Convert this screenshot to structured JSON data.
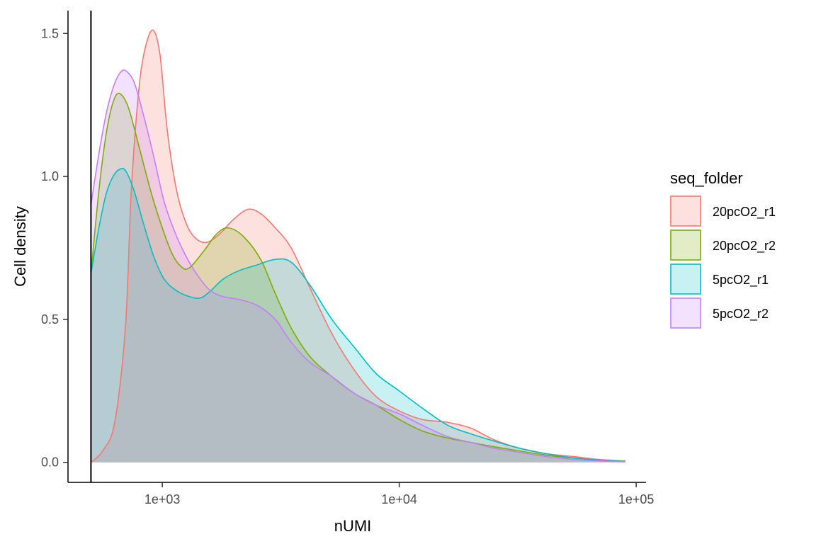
{
  "chart_data": {
    "type": "area",
    "subtype": "density",
    "xlabel": "nUMI",
    "ylabel": "Cell density",
    "x_scale": "log10",
    "xlim": [
      400,
      110000
    ],
    "ylim": [
      -0.07,
      1.58
    ],
    "x_ticks": [
      {
        "value": 1000,
        "label": "1e+03"
      },
      {
        "value": 10000,
        "label": "1e+04"
      },
      {
        "value": 100000,
        "label": "1e+05"
      }
    ],
    "y_ticks": [
      {
        "value": 0.0,
        "label": "0.0"
      },
      {
        "value": 0.5,
        "label": "0.5"
      },
      {
        "value": 1.0,
        "label": "1.0"
      },
      {
        "value": 1.5,
        "label": "1.5"
      }
    ],
    "vline": 500,
    "grid": false,
    "fill_opacity": 0.22,
    "legend": {
      "title": "seq_folder",
      "position": "right"
    },
    "series": [
      {
        "name": "20pcO2_r1",
        "color": "#F8766D",
        "x": [
          500,
          560,
          630,
          700,
          740,
          800,
          860,
          920,
          980,
          1050,
          1150,
          1270,
          1400,
          1550,
          1750,
          2000,
          2300,
          2600,
          3000,
          3500,
          4200,
          5200,
          6500,
          8000,
          10000,
          12500,
          16000,
          20000,
          25000,
          32000,
          42000,
          55000,
          70000,
          90000
        ],
        "y": [
          0.0,
          0.04,
          0.14,
          0.48,
          0.95,
          1.32,
          1.47,
          1.51,
          1.42,
          1.16,
          0.95,
          0.83,
          0.78,
          0.77,
          0.8,
          0.85,
          0.885,
          0.87,
          0.82,
          0.75,
          0.61,
          0.45,
          0.32,
          0.23,
          0.18,
          0.15,
          0.14,
          0.12,
          0.08,
          0.05,
          0.03,
          0.02,
          0.01,
          0.005
        ]
      },
      {
        "name": "20pcO2_r2",
        "color": "#7CAE00",
        "x": [
          500,
          540,
          580,
          620,
          660,
          720,
          800,
          900,
          1000,
          1100,
          1200,
          1300,
          1500,
          1700,
          1900,
          2200,
          2600,
          3000,
          3500,
          4200,
          5200,
          6500,
          8000,
          10000,
          12500,
          16000,
          20000,
          25000,
          32000,
          42000,
          55000,
          70000,
          90000
        ],
        "y": [
          0.66,
          0.95,
          1.15,
          1.26,
          1.29,
          1.24,
          1.1,
          0.94,
          0.82,
          0.73,
          0.685,
          0.68,
          0.74,
          0.8,
          0.82,
          0.79,
          0.71,
          0.59,
          0.47,
          0.37,
          0.3,
          0.24,
          0.2,
          0.15,
          0.11,
          0.085,
          0.07,
          0.055,
          0.04,
          0.025,
          0.015,
          0.008,
          0.004
        ]
      },
      {
        "name": "5pcO2_r1",
        "color": "#00BFC4",
        "x": [
          500,
          540,
          580,
          620,
          660,
          700,
          760,
          830,
          920,
          1020,
          1150,
          1300,
          1450,
          1600,
          1800,
          2100,
          2500,
          3000,
          3500,
          4200,
          5200,
          6500,
          8000,
          10000,
          12500,
          16000,
          20000,
          25000,
          32000,
          42000,
          55000,
          70000,
          90000
        ],
        "y": [
          0.66,
          0.82,
          0.94,
          1.0,
          1.025,
          1.02,
          0.95,
          0.84,
          0.72,
          0.64,
          0.6,
          0.58,
          0.575,
          0.6,
          0.64,
          0.67,
          0.69,
          0.71,
          0.7,
          0.62,
          0.5,
          0.4,
          0.31,
          0.25,
          0.19,
          0.13,
          0.1,
          0.075,
          0.05,
          0.03,
          0.015,
          0.008,
          0.003
        ]
      },
      {
        "name": "5pcO2_r2",
        "color": "#C77CFF",
        "x": [
          500,
          540,
          580,
          620,
          660,
          700,
          760,
          830,
          920,
          1020,
          1150,
          1300,
          1450,
          1600,
          1800,
          2100,
          2500,
          3000,
          3500,
          4200,
          5200,
          6500,
          8000,
          10000,
          12500,
          16000,
          20000,
          25000,
          32000,
          42000,
          55000,
          70000,
          90000
        ],
        "y": [
          0.9,
          1.08,
          1.22,
          1.31,
          1.36,
          1.37,
          1.33,
          1.22,
          1.07,
          0.91,
          0.79,
          0.7,
          0.64,
          0.6,
          0.58,
          0.57,
          0.55,
          0.5,
          0.42,
          0.35,
          0.3,
          0.24,
          0.2,
          0.17,
          0.13,
          0.09,
          0.07,
          0.05,
          0.035,
          0.02,
          0.01,
          0.005,
          0.002
        ]
      }
    ]
  }
}
